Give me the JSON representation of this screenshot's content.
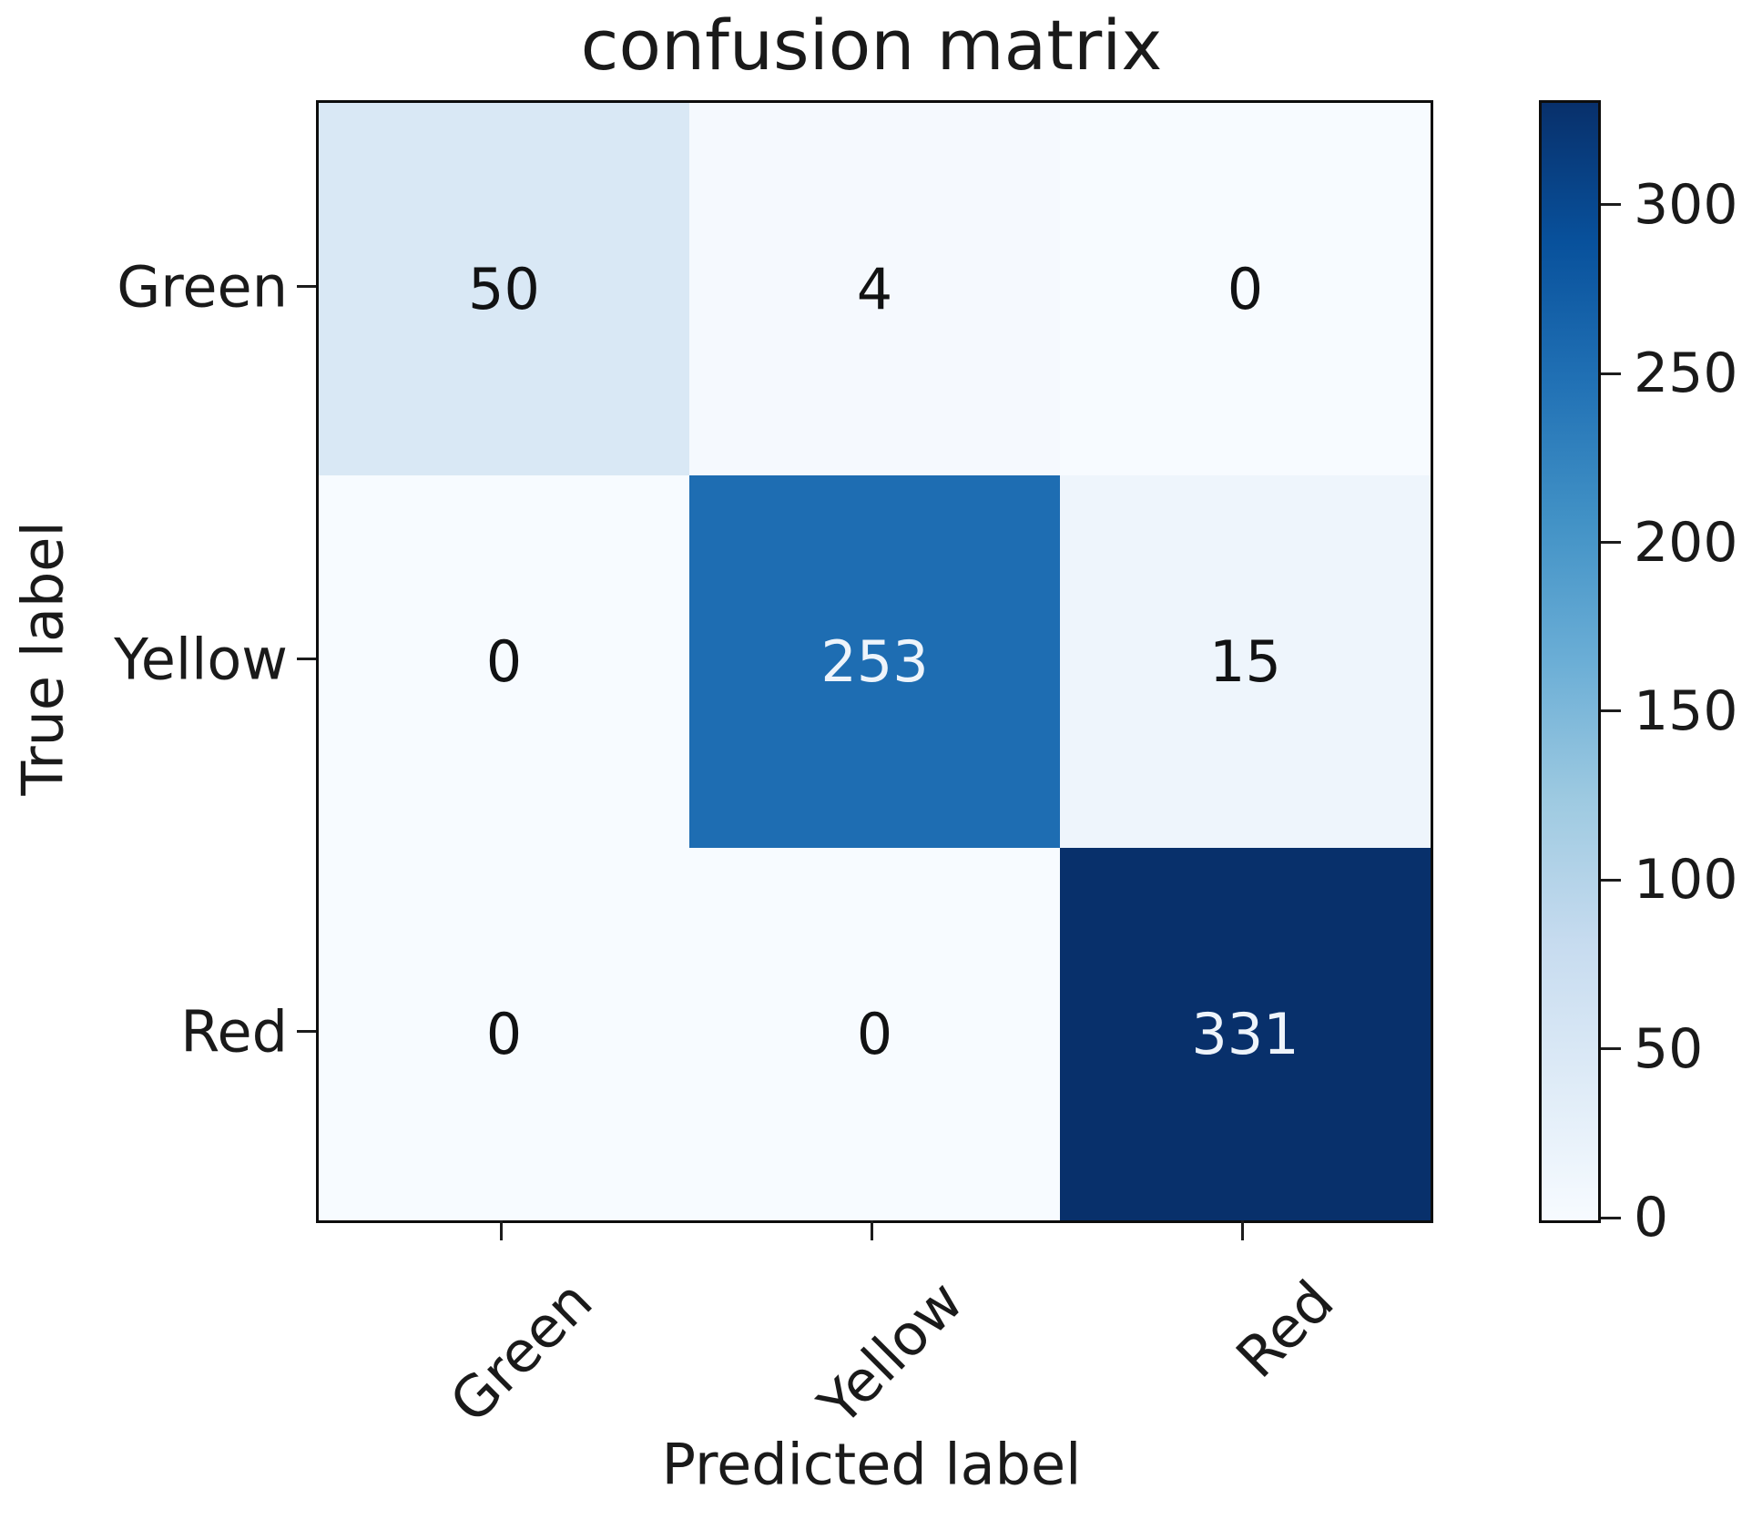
{
  "figure": {
    "title": "confusion matrix"
  },
  "axes": {
    "x_label": "Predicted label",
    "y_label": "True label",
    "x_tick_labels": [
      "Green",
      "Yellow",
      "Red"
    ],
    "y_tick_labels": [
      "Green",
      "Yellow",
      "Red"
    ]
  },
  "colorbar": {
    "tick_values": [
      0,
      50,
      100,
      150,
      200,
      250,
      300
    ],
    "tick_labels": [
      "0",
      "50",
      "100",
      "150",
      "200",
      "250",
      "300"
    ]
  },
  "chart_data": {
    "type": "heatmap",
    "title": "confusion matrix",
    "xlabel": "Predicted label",
    "ylabel": "True label",
    "x_categories": [
      "Green",
      "Yellow",
      "Red"
    ],
    "y_categories": [
      "Green",
      "Yellow",
      "Red"
    ],
    "matrix": [
      [
        50,
        4,
        0
      ],
      [
        0,
        253,
        15
      ],
      [
        0,
        0,
        331
      ]
    ],
    "vmin": 0,
    "vmax": 331,
    "colormap": "Blues",
    "colorbar_ticks": [
      0,
      50,
      100,
      150,
      200,
      250,
      300
    ],
    "legend_position": "colorbar-right",
    "grid": false,
    "cell_colors": [
      [
        "#d9e8f5",
        "#f5f9fe",
        "#f7fbff"
      ],
      [
        "#f7fbff",
        "#1e6db2",
        "#eef5fc"
      ],
      [
        "#f7fbff",
        "#f7fbff",
        "#08306b"
      ]
    ],
    "cell_text_colors": [
      [
        "#111213",
        "#111213",
        "#111213"
      ],
      [
        "#111213",
        "#eef4fb",
        "#111213"
      ],
      [
        "#111213",
        "#111213",
        "#eef4fb"
      ]
    ],
    "colormap_stops": [
      "#f7fbff",
      "#deebf7",
      "#c6dbef",
      "#9ecae1",
      "#6baed6",
      "#4292c6",
      "#2171b5",
      "#08519c",
      "#08306b"
    ],
    "spine_color": "#0d0d0d",
    "tick_color": "#1c1c1c",
    "text_color": "#1a1a1a"
  }
}
